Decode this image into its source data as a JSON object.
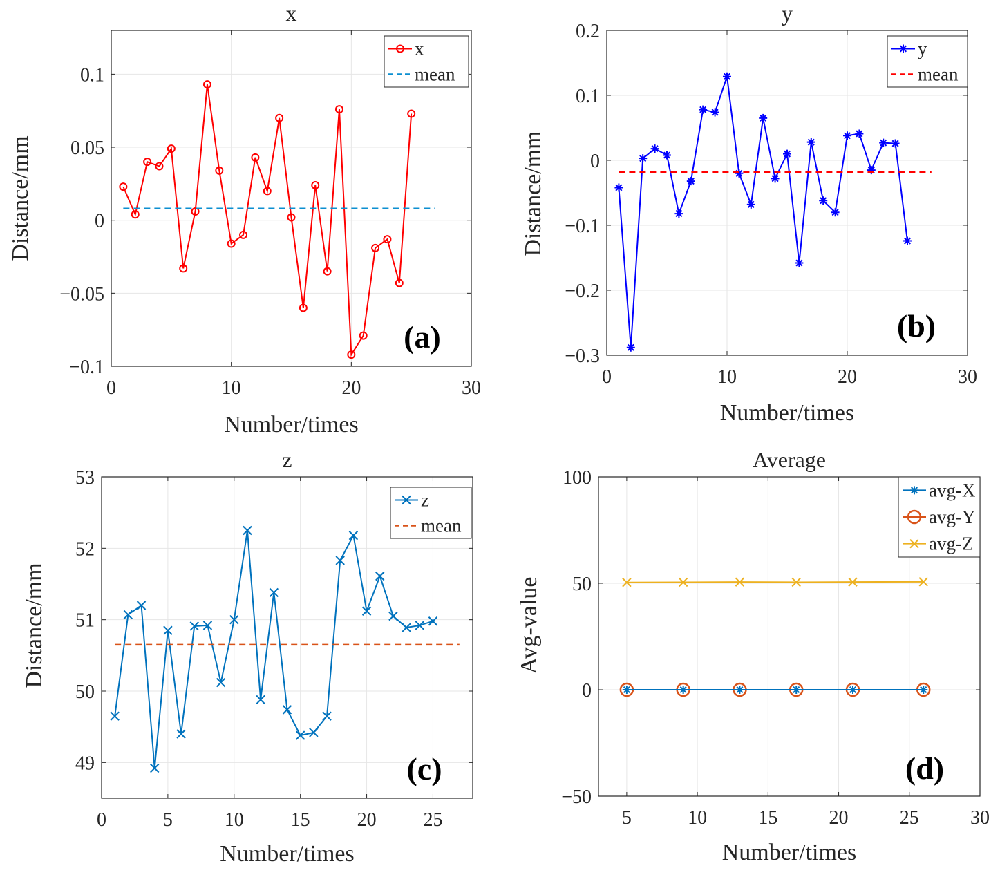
{
  "colors": {
    "red": "#ff0000",
    "blue": "#0000ff",
    "matlab_blue": "#0072bd",
    "matlab_orange": "#d95319",
    "matlab_yellow": "#edb120",
    "matlab_cyan": "#0c8fd0",
    "grid": "#e6e6e6",
    "axis": "#262626"
  },
  "chart_data": [
    {
      "type": "line",
      "panel_label": "(a)",
      "title": "x",
      "xlabel": "Number/times",
      "ylabel": "Distance/mm",
      "xlim": [
        0,
        30
      ],
      "ylim": [
        -0.1,
        0.13
      ],
      "xticks": [
        0,
        10,
        20,
        30
      ],
      "xtick_labels": [
        "0",
        "10",
        "20",
        "30"
      ],
      "yticks": [
        -0.1,
        -0.05,
        0,
        0.05,
        0.1
      ],
      "ytick_labels": [
        "−0.1",
        "−0.05",
        "0",
        "0.05",
        "0.1"
      ],
      "grid": true,
      "legend": "top-right",
      "series": [
        {
          "name": "x",
          "style": "line-marker",
          "marker": "circle",
          "color": "#ff0000",
          "x": [
            1,
            2,
            3,
            4,
            5,
            6,
            7,
            8,
            9,
            10,
            11,
            12,
            13,
            14,
            15,
            16,
            17,
            18,
            19,
            20,
            21,
            22,
            23,
            24,
            25
          ],
          "values": [
            0.023,
            0.004,
            0.04,
            0.037,
            0.049,
            -0.033,
            0.006,
            0.093,
            0.034,
            -0.016,
            -0.01,
            0.043,
            0.02,
            0.07,
            0.002,
            -0.06,
            0.024,
            -0.035,
            0.076,
            -0.092,
            -0.079,
            -0.019,
            -0.013,
            -0.043,
            0.073
          ]
        },
        {
          "name": "mean",
          "style": "dashed",
          "color": "#0c8fd0",
          "x": [
            1,
            27
          ],
          "values": [
            0.008,
            0.008
          ]
        }
      ]
    },
    {
      "type": "line",
      "panel_label": "(b)",
      "title": "y",
      "xlabel": "Number/times",
      "ylabel": "Distance/mm",
      "xlim": [
        0,
        30
      ],
      "ylim": [
        -0.3,
        0.2
      ],
      "xticks": [
        0,
        10,
        20,
        30
      ],
      "xtick_labels": [
        "0",
        "10",
        "20",
        "30"
      ],
      "yticks": [
        -0.3,
        -0.2,
        -0.1,
        0,
        0.1,
        0.2
      ],
      "ytick_labels": [
        "−0.3",
        "−0.2",
        "−0.1",
        "0",
        "0.1",
        "0.2"
      ],
      "grid": true,
      "legend": "top-right",
      "series": [
        {
          "name": "y",
          "style": "line-marker",
          "marker": "star",
          "color": "#0000ff",
          "x": [
            1,
            2,
            3,
            4,
            5,
            6,
            7,
            8,
            9,
            10,
            11,
            12,
            13,
            14,
            15,
            16,
            17,
            18,
            19,
            20,
            21,
            22,
            23,
            24,
            25
          ],
          "values": [
            -0.042,
            -0.288,
            0.003,
            0.018,
            0.008,
            -0.082,
            -0.032,
            0.078,
            0.074,
            0.129,
            -0.02,
            -0.068,
            0.065,
            -0.028,
            0.01,
            -0.158,
            0.028,
            -0.062,
            -0.08,
            0.038,
            0.041,
            -0.015,
            0.027,
            0.026,
            -0.124
          ]
        },
        {
          "name": "mean",
          "style": "dashed",
          "color": "#ff0000",
          "x": [
            1,
            27
          ],
          "values": [
            -0.018,
            -0.018
          ]
        }
      ]
    },
    {
      "type": "line",
      "panel_label": "(c)",
      "title": "z",
      "xlabel": "Number/times",
      "ylabel": "Distance/mm",
      "xlim": [
        0,
        28
      ],
      "ylim": [
        48.5,
        53
      ],
      "xticks": [
        0,
        5,
        10,
        15,
        20,
        25
      ],
      "xtick_labels": [
        "0",
        "5",
        "10",
        "15",
        "20",
        "25"
      ],
      "yticks": [
        49,
        50,
        51,
        52,
        53
      ],
      "ytick_labels": [
        "49",
        "50",
        "51",
        "52",
        "53"
      ],
      "grid": true,
      "legend": "top-right",
      "series": [
        {
          "name": "z",
          "style": "line-marker",
          "marker": "x",
          "color": "#0072bd",
          "x": [
            1,
            2,
            3,
            4,
            5,
            6,
            7,
            8,
            9,
            10,
            11,
            12,
            13,
            14,
            15,
            16,
            17,
            18,
            19,
            20,
            21,
            22,
            23,
            24,
            25
          ],
          "values": [
            49.65,
            51.07,
            51.2,
            48.92,
            50.85,
            49.4,
            50.91,
            50.92,
            50.12,
            51.0,
            52.25,
            49.88,
            51.38,
            49.74,
            49.38,
            49.42,
            49.65,
            51.83,
            52.18,
            51.12,
            51.61,
            51.05,
            50.89,
            50.92,
            50.98
          ]
        },
        {
          "name": "mean",
          "style": "dashed",
          "color": "#d95319",
          "x": [
            1,
            27
          ],
          "values": [
            50.65,
            50.65
          ]
        }
      ]
    },
    {
      "type": "line",
      "panel_label": "(d)",
      "title": "Average",
      "xlabel": "Number/times",
      "ylabel": "Avg-value",
      "xlim": [
        3,
        30
      ],
      "ylim": [
        -50,
        100
      ],
      "xticks": [
        5,
        10,
        15,
        20,
        25,
        30
      ],
      "xtick_labels": [
        "5",
        "10",
        "15",
        "20",
        "25",
        "30"
      ],
      "yticks": [
        -50,
        0,
        50,
        100
      ],
      "ytick_labels": [
        "−50",
        "0",
        "50",
        "100"
      ],
      "grid": true,
      "legend": "top-right",
      "series": [
        {
          "name": "avg-Y",
          "style": "line-marker",
          "marker": "circle-big",
          "color": "#d95319",
          "x": [
            5,
            9,
            13,
            17,
            21,
            26
          ],
          "values": [
            0,
            0,
            0,
            0,
            0,
            0
          ]
        },
        {
          "name": "avg-X",
          "style": "line-marker",
          "marker": "star",
          "color": "#0072bd",
          "x": [
            5,
            9,
            13,
            17,
            21,
            26
          ],
          "values": [
            0,
            0,
            0,
            0,
            0,
            0
          ]
        },
        {
          "name": "avg-Z",
          "style": "line-marker",
          "marker": "x",
          "color": "#edb120",
          "x": [
            5,
            9,
            13,
            17,
            21,
            26
          ],
          "values": [
            50.4,
            50.5,
            50.6,
            50.5,
            50.6,
            50.7
          ]
        }
      ],
      "legend_order": [
        "avg-X",
        "avg-Y",
        "avg-Z"
      ]
    }
  ]
}
